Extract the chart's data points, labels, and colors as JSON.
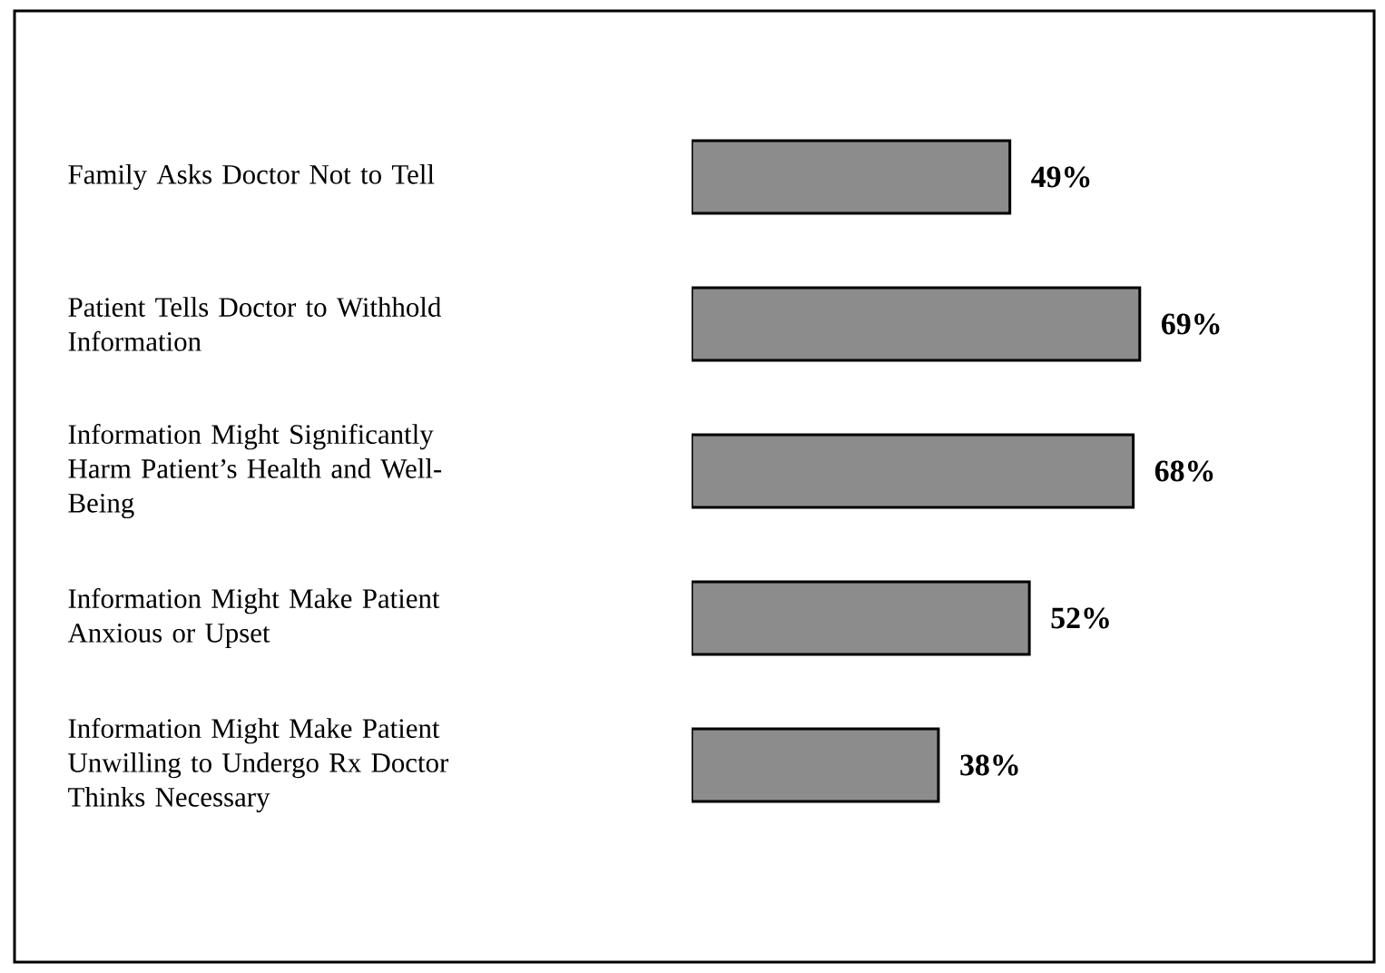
{
  "chart_data": {
    "type": "bar",
    "orientation": "horizontal",
    "categories": [
      "Family Asks Doctor Not to Tell",
      "Patient Tells Doctor to Withhold Information",
      "Information Might Significantly Harm Patient’s Health and Well-Being",
      "Information Might Make Patient Anxious or Upset",
      "Information Might Make Patient Unwilling to Undergo Rx Doctor Thinks Necessary"
    ],
    "values": [
      49,
      69,
      68,
      52,
      38
    ],
    "value_labels": [
      "49%",
      "69%",
      "68%",
      "52%",
      "38%"
    ],
    "color": "#8c8c8c"
  }
}
